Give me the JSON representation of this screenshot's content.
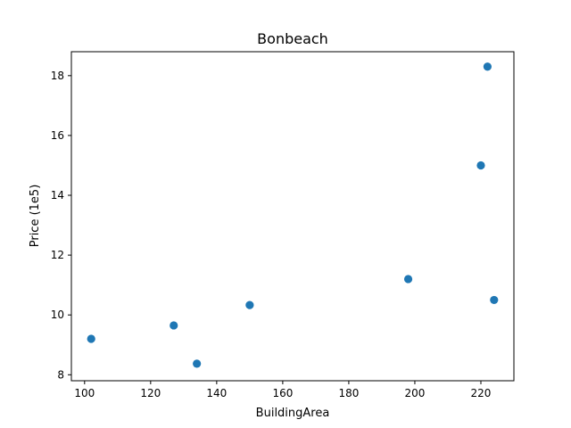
{
  "chart_data": {
    "type": "scatter",
    "title": "Bonbeach",
    "xlabel": "BuildingArea",
    "ylabel": "Price (1e5)",
    "xlim": [
      96,
      230
    ],
    "ylim": [
      7.8,
      18.8
    ],
    "xticks": [
      100,
      120,
      140,
      160,
      180,
      200,
      220
    ],
    "yticks": [
      8,
      10,
      12,
      14,
      16,
      18
    ],
    "grid": false,
    "point_color": "#1f77b4",
    "points": [
      {
        "x": 102,
        "y": 9.2
      },
      {
        "x": 127,
        "y": 9.65
      },
      {
        "x": 134,
        "y": 8.37
      },
      {
        "x": 150,
        "y": 10.33
      },
      {
        "x": 198,
        "y": 11.2
      },
      {
        "x": 220,
        "y": 15.0
      },
      {
        "x": 222,
        "y": 18.3
      },
      {
        "x": 224,
        "y": 10.5
      }
    ]
  }
}
